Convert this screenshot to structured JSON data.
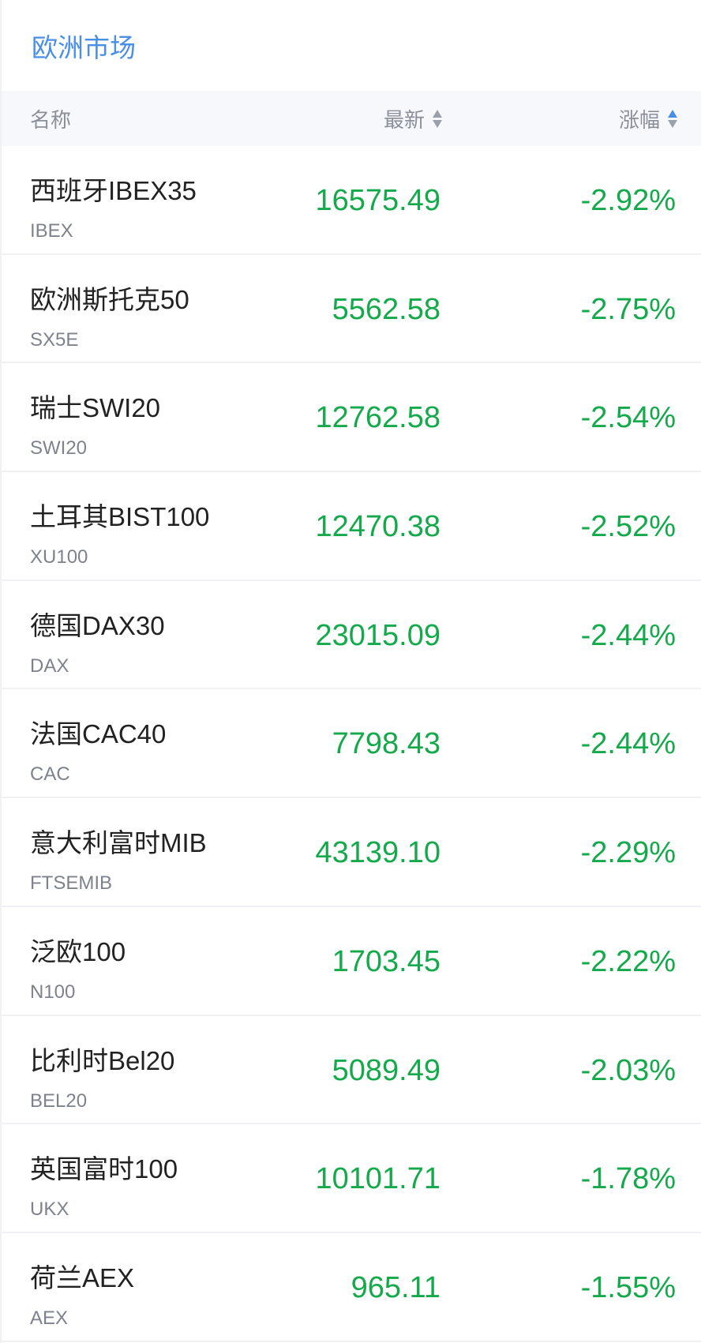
{
  "title": "欧洲市场",
  "header": {
    "name": "名称",
    "price": "最新",
    "change": "涨幅"
  },
  "colors": {
    "accent": "#4a8ee8",
    "down": "#14a94a"
  },
  "rows": [
    {
      "name": "西班牙IBEX35",
      "code": "IBEX",
      "price": "16575.49",
      "change": "-2.92%"
    },
    {
      "name": "欧洲斯托克50",
      "code": "SX5E",
      "price": "5562.58",
      "change": "-2.75%"
    },
    {
      "name": "瑞士SWI20",
      "code": "SWI20",
      "price": "12762.58",
      "change": "-2.54%"
    },
    {
      "name": "土耳其BIST100",
      "code": "XU100",
      "price": "12470.38",
      "change": "-2.52%"
    },
    {
      "name": "德国DAX30",
      "code": "DAX",
      "price": "23015.09",
      "change": "-2.44%"
    },
    {
      "name": "法国CAC40",
      "code": "CAC",
      "price": "7798.43",
      "change": "-2.44%"
    },
    {
      "name": "意大利富时MIB",
      "code": "FTSEMIB",
      "price": "43139.10",
      "change": "-2.29%"
    },
    {
      "name": "泛欧100",
      "code": "N100",
      "price": "1703.45",
      "change": "-2.22%"
    },
    {
      "name": "比利时Bel20",
      "code": "BEL20",
      "price": "5089.49",
      "change": "-2.03%"
    },
    {
      "name": "英国富时100",
      "code": "UKX",
      "price": "10101.71",
      "change": "-1.78%"
    },
    {
      "name": "荷兰AEX",
      "code": "AEX",
      "price": "965.11",
      "change": "-1.55%"
    }
  ]
}
